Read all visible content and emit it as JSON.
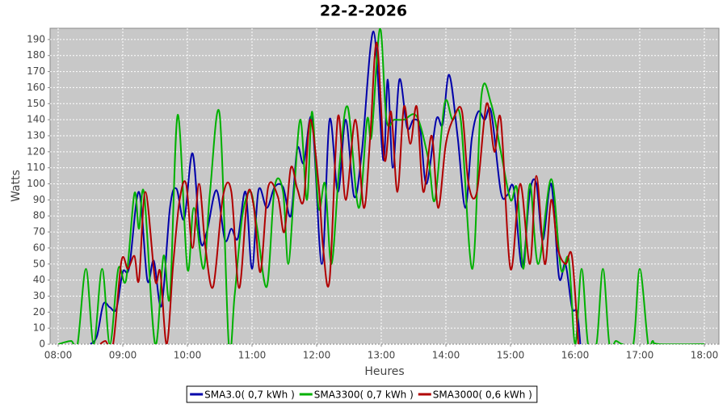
{
  "chart_data": {
    "type": "line",
    "title": "22-2-2026",
    "x_label": "Heures",
    "y_label": "Watts",
    "xlim": [
      7.875,
      18.225
    ],
    "ylim": [
      0,
      197
    ],
    "grid": true,
    "background": "#c8c8c8",
    "smooth": true,
    "legend": "bottom",
    "xticks": [
      {
        "value": 8,
        "label": "08:00"
      },
      {
        "value": 9,
        "label": "09:00"
      },
      {
        "value": 10,
        "label": "10:00"
      },
      {
        "value": 11,
        "label": "11:00"
      },
      {
        "value": 12,
        "label": "12:00"
      },
      {
        "value": 13,
        "label": "13:00"
      },
      {
        "value": 14,
        "label": "14:00"
      },
      {
        "value": 15,
        "label": "15:00"
      },
      {
        "value": 16,
        "label": "16:00"
      },
      {
        "value": 17,
        "label": "17:00"
      },
      {
        "value": 18,
        "label": "18:00"
      }
    ],
    "yticks": [
      0,
      10,
      20,
      30,
      40,
      50,
      60,
      70,
      80,
      90,
      100,
      110,
      120,
      130,
      140,
      150,
      160,
      170,
      180,
      190
    ],
    "series": [
      {
        "name": "SMA3.0( 0,7 kWh )",
        "color": "#0000aa",
        "x": [
          8.5,
          8.6,
          8.7,
          8.8,
          8.9,
          9.0,
          9.1,
          9.25,
          9.38,
          9.48,
          9.6,
          9.73,
          9.83,
          9.95,
          10.08,
          10.2,
          10.3,
          10.45,
          10.58,
          10.68,
          10.78,
          10.9,
          11.0,
          11.1,
          11.23,
          11.35,
          11.48,
          11.6,
          11.7,
          11.8,
          11.93,
          12.08,
          12.2,
          12.33,
          12.45,
          12.58,
          12.7,
          12.88,
          13.03,
          13.1,
          13.18,
          13.28,
          13.4,
          13.5,
          13.6,
          13.7,
          13.85,
          13.95,
          14.05,
          14.18,
          14.3,
          14.4,
          14.5,
          14.6,
          14.7,
          14.85,
          14.95,
          15.05,
          15.18,
          15.3,
          15.4,
          15.5,
          15.63,
          15.75,
          15.85,
          15.95,
          16.03,
          16.08
        ],
        "values": [
          0,
          5,
          25,
          23,
          22,
          45,
          48,
          95,
          40,
          52,
          24,
          85,
          97,
          78,
          119,
          65,
          70,
          96,
          65,
          72,
          66,
          95,
          47,
          96,
          85,
          98,
          98,
          80,
          122,
          113,
          140,
          50,
          140,
          95,
          140,
          92,
          120,
          195,
          115,
          165,
          110,
          165,
          135,
          140,
          135,
          100,
          140,
          137,
          168,
          130,
          85,
          128,
          145,
          140,
          145,
          95,
          93,
          97,
          48,
          95,
          100,
          65,
          100,
          42,
          50,
          23,
          20,
          0
        ]
      },
      {
        "name": "SMA3300( 0,7 kWh )",
        "color": "#00b000",
        "x": [
          8.0,
          8.2,
          8.3,
          8.43,
          8.55,
          8.68,
          8.8,
          8.93,
          9.05,
          9.18,
          9.25,
          9.33,
          9.5,
          9.63,
          9.73,
          9.85,
          10.0,
          10.1,
          10.25,
          10.35,
          10.5,
          10.64,
          10.73,
          10.85,
          10.98,
          11.08,
          11.23,
          11.35,
          11.48,
          11.56,
          11.65,
          11.75,
          11.85,
          11.93,
          12.03,
          12.13,
          12.23,
          12.35,
          12.48,
          12.65,
          12.78,
          12.85,
          12.98,
          13.08,
          13.2,
          13.35,
          13.55,
          13.73,
          13.83,
          13.98,
          14.1,
          14.23,
          14.41,
          14.55,
          14.7,
          14.85,
          15.0,
          15.1,
          15.2,
          15.3,
          15.43,
          15.63,
          15.78,
          15.9,
          16.0,
          16.1,
          16.2,
          16.33,
          16.43,
          16.53,
          16.63,
          16.73,
          16.9,
          17.0,
          17.13,
          17.2,
          17.3,
          18.0
        ],
        "values": [
          0,
          2,
          0,
          47,
          0,
          47,
          0,
          47,
          40,
          94,
          72,
          94,
          0,
          55,
          30,
          143,
          47,
          85,
          47,
          95,
          143,
          0,
          30,
          80,
          95,
          72,
          36,
          98,
          95,
          50,
          95,
          140,
          90,
          145,
          85,
          100,
          50,
          110,
          148,
          85,
          140,
          130,
          197,
          140,
          140,
          140,
          142,
          115,
          90,
          150,
          140,
          140,
          47,
          155,
          150,
          120,
          90,
          97,
          47,
          100,
          50,
          103,
          47,
          53,
          0,
          47,
          0,
          0,
          47,
          0,
          2,
          0,
          0,
          47,
          0,
          2,
          0,
          0
        ]
      },
      {
        "name": "SMA3000( 0,6 kWh )",
        "color": "#b00000",
        "x": [
          8.65,
          8.73,
          8.85,
          8.98,
          9.08,
          9.18,
          9.25,
          9.35,
          9.5,
          9.58,
          9.68,
          9.78,
          9.88,
          9.98,
          10.08,
          10.18,
          10.28,
          10.4,
          10.55,
          10.68,
          10.8,
          10.93,
          11.03,
          11.13,
          11.25,
          11.4,
          11.5,
          11.6,
          11.7,
          11.8,
          11.9,
          12.03,
          12.1,
          12.2,
          12.33,
          12.45,
          12.6,
          12.73,
          12.83,
          12.93,
          13.05,
          13.15,
          13.25,
          13.35,
          13.45,
          13.55,
          13.65,
          13.78,
          13.88,
          14.0,
          14.13,
          14.25,
          14.35,
          14.48,
          14.63,
          14.75,
          14.85,
          15.0,
          15.15,
          15.3,
          15.4,
          15.53,
          15.63,
          15.73,
          15.85,
          15.95,
          16.05
        ],
        "values": [
          0,
          2,
          0,
          52,
          47,
          55,
          40,
          95,
          40,
          45,
          0,
          50,
          90,
          100,
          60,
          100,
          60,
          36,
          92,
          95,
          35,
          93,
          85,
          45,
          98,
          92,
          70,
          110,
          97,
          90,
          140,
          100,
          60,
          40,
          142,
          90,
          140,
          85,
          130,
          188,
          115,
          145,
          95,
          148,
          125,
          148,
          95,
          130,
          85,
          125,
          142,
          145,
          100,
          95,
          150,
          120,
          140,
          47,
          100,
          50,
          105,
          50,
          90,
          60,
          50,
          55,
          0
        ]
      }
    ]
  }
}
